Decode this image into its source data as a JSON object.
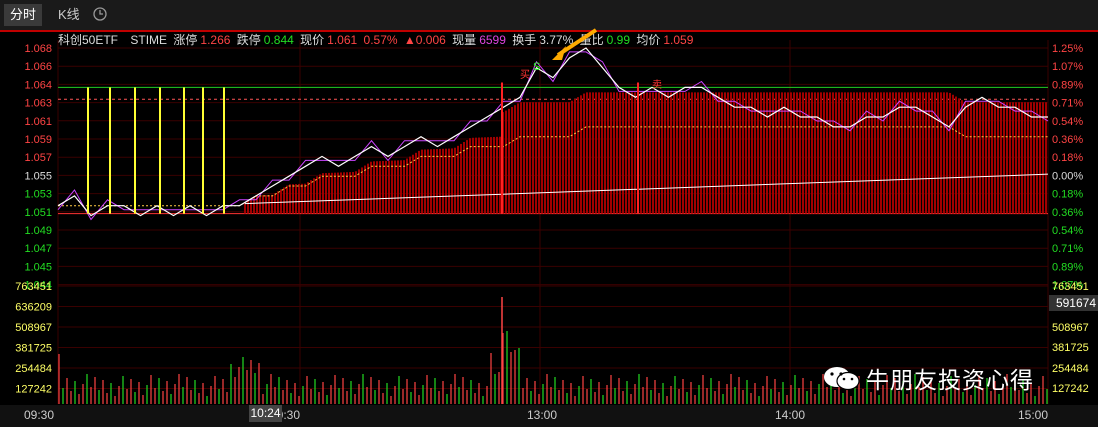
{
  "tabs": {
    "fenshi": "分时",
    "kline": "K线"
  },
  "info": {
    "name": "科创50ETF",
    "stime": "STIME",
    "zt_label": "涨停",
    "zt_val": "1.266",
    "dt_label": "跌停",
    "dt_val": "0.844",
    "xj_label": "现价",
    "xj_val": "1.061",
    "xj_pct": "0.57%",
    "xj_chg": "▲0.006",
    "xl_label": "现量",
    "xl_val": "6599",
    "hs_label": "换手",
    "hs_val": "3.77%",
    "lb_label": "量比",
    "lb_val": "0.99",
    "jj_label": "均价",
    "jj_val": "1.059"
  },
  "price_left": [
    "1.068",
    "1.066",
    "1.064",
    "1.063",
    "1.061",
    "1.059",
    "1.057",
    "1.055",
    "1.053",
    "1.051",
    "1.049",
    "1.047",
    "1.045",
    "1.044"
  ],
  "pct_right": [
    "1.25%",
    "1.07%",
    "0.89%",
    "0.71%",
    "0.54%",
    "0.36%",
    "0.18%",
    "0.00%",
    "0.18%",
    "0.36%",
    "0.54%",
    "0.71%",
    "0.89%",
    "1.07%"
  ],
  "vol_left": [
    "763451",
    "636209",
    "508967",
    "381725",
    "254484",
    "127242"
  ],
  "vol_right": [
    "763451",
    "508967",
    "381725",
    "254484",
    "127242"
  ],
  "vol_current": "591674",
  "times": {
    "t1": "09:30",
    "t2": "10:30",
    "t3": "13:00",
    "t4": "14:00",
    "t5": "15:00",
    "cursor": "10:24"
  },
  "markers": {
    "buy": "买",
    "sell": "卖",
    "s": "S"
  },
  "watermark": "牛朋友投资心得",
  "colors": {
    "up": "#ff4444",
    "down": "#22dd22",
    "bg": "#000000",
    "avg": "#ffff44",
    "price": "#ffffff",
    "price2": "#cc44ff"
  },
  "chart_data": {
    "type": "line",
    "title": "",
    "x_ticks": [
      "09:30",
      "10:30",
      "13:00",
      "14:00",
      "15:00"
    ],
    "ylim": [
      1.044,
      1.068
    ],
    "prev_close": 1.055,
    "series": [
      {
        "values": [
          1.052,
          1.053,
          1.051,
          1.052,
          1.052,
          1.051,
          1.052,
          1.051,
          1.052,
          1.051,
          1.052,
          1.052,
          1.053,
          1.054,
          1.055,
          1.056,
          1.057,
          1.056,
          1.057,
          1.058,
          1.057,
          1.058,
          1.059,
          1.058,
          1.059,
          1.06,
          1.061,
          1.062,
          1.063,
          1.066,
          1.065,
          1.067,
          1.068,
          1.066,
          1.064,
          1.063,
          1.064,
          1.063,
          1.064,
          1.064,
          1.063,
          1.062,
          1.062,
          1.061,
          1.062,
          1.061,
          1.061,
          1.06,
          1.06,
          1.061,
          1.061,
          1.062,
          1.062,
          1.061,
          1.06,
          1.062,
          1.063,
          1.062,
          1.062,
          1.061,
          1.061
        ]
      },
      {
        "values": [
          1.052,
          1.052,
          1.052,
          1.052,
          1.052,
          1.052,
          1.052,
          1.052,
          1.052,
          1.052,
          1.052,
          1.052,
          1.053,
          1.053,
          1.054,
          1.054,
          1.055,
          1.055,
          1.055,
          1.056,
          1.056,
          1.056,
          1.057,
          1.057,
          1.057,
          1.058,
          1.058,
          1.058,
          1.059,
          1.059,
          1.059,
          1.059,
          1.06,
          1.06,
          1.06,
          1.06,
          1.06,
          1.06,
          1.06,
          1.06,
          1.06,
          1.06,
          1.06,
          1.06,
          1.06,
          1.06,
          1.06,
          1.06,
          1.06,
          1.06,
          1.06,
          1.06,
          1.06,
          1.06,
          1.06,
          1.059,
          1.059,
          1.059,
          1.059,
          1.059,
          1.059
        ]
      }
    ]
  }
}
